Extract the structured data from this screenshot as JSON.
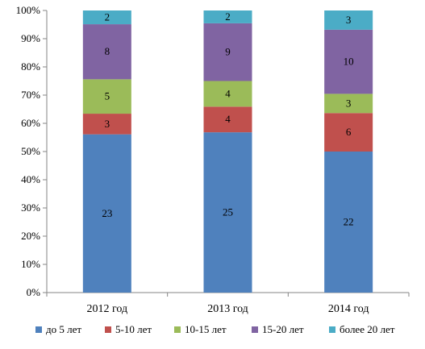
{
  "chart_data": {
    "type": "bar",
    "stacked": true,
    "percent_stacked": true,
    "title": "",
    "xlabel": "",
    "ylabel": "",
    "ylim": [
      0,
      100
    ],
    "y_ticks": [
      "0%",
      "10%",
      "20%",
      "30%",
      "40%",
      "50%",
      "60%",
      "70%",
      "80%",
      "90%",
      "100%"
    ],
    "grid": false,
    "legend_position": "bottom",
    "categories": [
      "2012 год",
      "2013 год",
      "2014 год"
    ],
    "series": [
      {
        "name": "до 5 лет",
        "values": [
          23,
          25,
          22
        ],
        "color": "#4F81BD"
      },
      {
        "name": "5-10 лет",
        "values": [
          3,
          4,
          6
        ],
        "color": "#C0504D"
      },
      {
        "name": "10-15 лет",
        "values": [
          5,
          4,
          3
        ],
        "color": "#9BBB59"
      },
      {
        "name": "15-20 лет",
        "values": [
          8,
          9,
          10
        ],
        "color": "#8064A2"
      },
      {
        "name": "более 20 лет",
        "values": [
          2,
          2,
          3
        ],
        "color": "#4BACC6"
      }
    ]
  }
}
